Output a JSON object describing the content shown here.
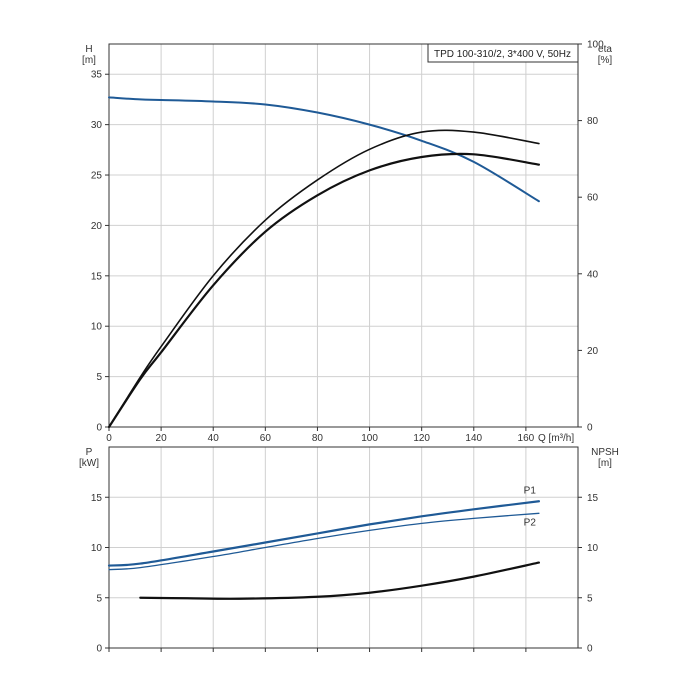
{
  "chart_data": [
    {
      "type": "line",
      "title": "TPD 100-310/2, 3*400 V, 50Hz",
      "xlabel": "Q [m³/h]",
      "xlim": [
        0,
        180
      ],
      "xticks": [
        0,
        20,
        40,
        60,
        80,
        100,
        120,
        140,
        160
      ],
      "left_axis": {
        "name": "H",
        "unit": "[m]",
        "lim": [
          0,
          38
        ],
        "ticks": [
          0,
          5,
          10,
          15,
          20,
          25,
          30,
          35
        ]
      },
      "right_axis": {
        "name": "eta",
        "unit": "[%]",
        "lim": [
          0,
          100
        ],
        "ticks": [
          0,
          20,
          40,
          60,
          80,
          100
        ]
      },
      "grid": true,
      "series": [
        {
          "axis": "left",
          "color": "#1f5a96",
          "role": "head",
          "x": [
            0,
            12,
            20,
            40,
            60,
            80,
            100,
            120,
            140,
            165
          ],
          "y": [
            32.7,
            32.5,
            32.45,
            32.3,
            32.0,
            31.2,
            30.0,
            28.4,
            26.3,
            22.4
          ]
        },
        {
          "axis": "right",
          "color": "#111111",
          "role": "efficiency-upper",
          "x": [
            0,
            12,
            20,
            40,
            60,
            80,
            100,
            120,
            140,
            165
          ],
          "y": [
            0,
            13.0,
            21.0,
            39.5,
            54.0,
            64.5,
            72.5,
            77.0,
            77.0,
            74.0
          ]
        },
        {
          "axis": "right",
          "color": "#111111",
          "role": "efficiency-lower",
          "x": [
            0,
            12,
            20,
            40,
            60,
            80,
            100,
            120,
            140,
            165
          ],
          "y": [
            0,
            12.5,
            19.5,
            37.0,
            51.0,
            60.5,
            67.0,
            70.5,
            71.2,
            68.5
          ]
        }
      ]
    },
    {
      "type": "line",
      "xlim": [
        0,
        180
      ],
      "left_axis": {
        "name": "P",
        "unit": "[kW]",
        "lim": [
          0,
          20
        ],
        "ticks": [
          0,
          5,
          10,
          15
        ]
      },
      "right_axis": {
        "name": "NPSH",
        "unit": "[m]",
        "lim": [
          0,
          20
        ],
        "ticks": [
          0,
          5,
          10,
          15
        ]
      },
      "grid": true,
      "series": [
        {
          "name": "P1",
          "axis": "left",
          "color": "#1f5a96",
          "x": [
            0,
            12,
            40,
            60,
            80,
            100,
            120,
            140,
            165
          ],
          "y": [
            8.2,
            8.4,
            9.6,
            10.5,
            11.4,
            12.3,
            13.1,
            13.8,
            14.6
          ]
        },
        {
          "name": "P2",
          "axis": "left",
          "color": "#1f5a96",
          "x": [
            0,
            12,
            40,
            60,
            80,
            100,
            120,
            140,
            165
          ],
          "y": [
            7.8,
            8.0,
            9.1,
            10.0,
            10.9,
            11.7,
            12.4,
            12.9,
            13.4
          ]
        },
        {
          "axis": "right",
          "color": "#111111",
          "role": "npsh",
          "x": [
            12,
            30,
            50,
            80,
            100,
            120,
            140,
            165
          ],
          "y": [
            5.0,
            4.95,
            4.9,
            5.1,
            5.5,
            6.2,
            7.1,
            8.5
          ]
        }
      ]
    }
  ]
}
